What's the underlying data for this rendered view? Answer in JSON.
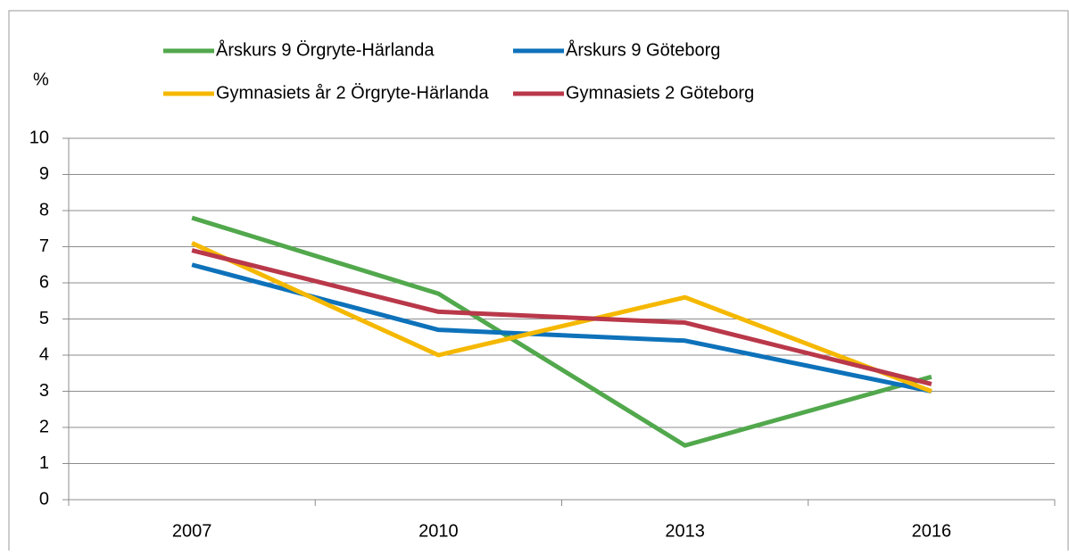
{
  "chart_data": {
    "type": "line",
    "y_label": "%",
    "categories": [
      "2007",
      "2010",
      "2013",
      "2016"
    ],
    "series": [
      {
        "name": "Årskurs 9 Örgryte-Härlanda",
        "color": "#52a84c",
        "values": [
          7.8,
          5.7,
          1.5,
          3.4
        ]
      },
      {
        "name": "Årskurs 9 Göteborg",
        "color": "#0e72ba",
        "values": [
          6.5,
          4.7,
          4.4,
          3.0
        ]
      },
      {
        "name": "Gymnasiets år 2 Örgryte-Härlanda",
        "color": "#f5b800",
        "values": [
          7.1,
          4.0,
          5.6,
          3.0
        ]
      },
      {
        "name": "Gymnasiets 2 Göteborg",
        "color": "#b9384a",
        "values": [
          6.9,
          5.2,
          4.9,
          3.2
        ]
      }
    ],
    "ylim": [
      0,
      10
    ],
    "yticks": [
      0,
      1,
      2,
      3,
      4,
      5,
      6,
      7,
      8,
      9,
      10
    ],
    "grid": true
  }
}
